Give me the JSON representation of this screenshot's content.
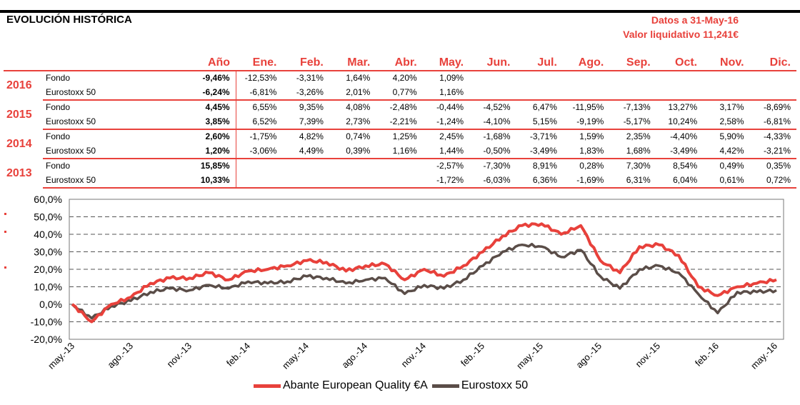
{
  "header": {
    "title": "EVOLUCIÓN HISTÓRICA",
    "date_line": "Datos a 31-May-16",
    "nav_line": "Valor liquidativo 11,241€"
  },
  "table": {
    "columns": [
      "Año",
      "Ene.",
      "Feb.",
      "Mar.",
      "Abr.",
      "May.",
      "Jun.",
      "Jul.",
      "Ago.",
      "Sep.",
      "Oct.",
      "Nov.",
      "Dic."
    ],
    "rows": [
      {
        "year": "2016",
        "fondo": {
          "label": "Fondo",
          "ano": "-9,46%",
          "months": [
            "-12,53%",
            "-3,31%",
            "1,64%",
            "4,20%",
            "1,09%",
            "",
            "",
            "",
            "",
            "",
            "",
            ""
          ]
        },
        "index": {
          "label": "Eurostoxx 50",
          "ano": "-6,24%",
          "months": [
            "-6,81%",
            "-3,26%",
            "2,01%",
            "0,77%",
            "1,16%",
            "",
            "",
            "",
            "",
            "",
            "",
            ""
          ]
        }
      },
      {
        "year": "2015",
        "fondo": {
          "label": "Fondo",
          "ano": "4,45%",
          "months": [
            "6,55%",
            "9,35%",
            "4,08%",
            "-2,48%",
            "-0,44%",
            "-4,52%",
            "6,47%",
            "-11,95%",
            "-7,13%",
            "13,27%",
            "3,17%",
            "-8,69%"
          ]
        },
        "index": {
          "label": "Eurostoxx 50",
          "ano": "3,85%",
          "months": [
            "6,52%",
            "7,39%",
            "2,73%",
            "-2,21%",
            "-1,24%",
            "-4,10%",
            "5,15%",
            "-9,19%",
            "-5,17%",
            "10,24%",
            "2,58%",
            "-6,81%"
          ]
        }
      },
      {
        "year": "2014",
        "fondo": {
          "label": "Fondo",
          "ano": "2,60%",
          "months": [
            "-1,75%",
            "4,82%",
            "0,74%",
            "1,25%",
            "2,45%",
            "-1,68%",
            "-3,71%",
            "1,59%",
            "2,35%",
            "-4,40%",
            "5,90%",
            "-4,33%"
          ]
        },
        "index": {
          "label": "Eurostoxx 50",
          "ano": "1,20%",
          "months": [
            "-3,06%",
            "4,49%",
            "0,39%",
            "1,16%",
            "1,44%",
            "-0,50%",
            "-3,49%",
            "1,83%",
            "1,68%",
            "-3,49%",
            "4,42%",
            "-3,21%"
          ]
        }
      },
      {
        "year": "2013",
        "fondo": {
          "label": "Fondo",
          "ano": "15,85%",
          "months": [
            "",
            "",
            "",
            "",
            "-2,57%",
            "-7,30%",
            "8,91%",
            "0,28%",
            "7,30%",
            "8,54%",
            "0,49%",
            "0,35%"
          ]
        },
        "index": {
          "label": "Eurostoxx 50",
          "ano": "10,33%",
          "months": [
            "",
            "",
            "",
            "",
            "-1,72%",
            "-6,03%",
            "6,36%",
            "-1,69%",
            "6,31%",
            "6,04%",
            "0,61%",
            "0,72%"
          ]
        }
      }
    ]
  },
  "colors": {
    "accent": "#e8413b",
    "fund_line": "#e8413b",
    "index_line": "#5a4d48"
  },
  "chart_data": {
    "type": "line",
    "y_ticks": [
      "60,0%",
      "50,0%",
      "40,0%",
      "30,0%",
      "20,0%",
      "10,0%",
      "0,0%",
      "-10,0%",
      "-20,0%"
    ],
    "ylim": [
      -20,
      60
    ],
    "x_ticks": [
      "may.-13",
      "ago.-13",
      "nov.-13",
      "feb.-14",
      "may.-14",
      "ago.-14",
      "nov.-14",
      "feb.-15",
      "may.-15",
      "ago.-15",
      "nov.-15",
      "feb.-16",
      "may.-16"
    ],
    "x_range": [
      "may.-13",
      "may.-16"
    ],
    "grid": "horizontal-dashed",
    "legend_position": "bottom-center",
    "x": [
      "may.-13",
      "jun.-13",
      "jul.-13",
      "ago.-13",
      "sep.-13",
      "oct.-13",
      "nov.-13",
      "dic.-13",
      "ene.-14",
      "feb.-14",
      "mar.-14",
      "abr.-14",
      "may.-14",
      "jun.-14",
      "jul.-14",
      "ago.-14",
      "sep.-14",
      "oct.-14",
      "nov.-14",
      "dic.-14",
      "ene.-15",
      "feb.-15",
      "mar.-15",
      "abr.-15",
      "may.-15",
      "jun.-15",
      "jul.-15",
      "ago.-15",
      "sep.-15",
      "oct.-15",
      "nov.-15",
      "dic.-15",
      "ene.-16",
      "feb.-16",
      "mar.-16",
      "abr.-16",
      "may.-16"
    ],
    "series": [
      {
        "name": "Abante European Quality €A",
        "values": [
          0,
          -10,
          0,
          4,
          12,
          15,
          15,
          18,
          14,
          19,
          20,
          22,
          25,
          24,
          19,
          22,
          23,
          14,
          20,
          16,
          22,
          30,
          39,
          45,
          46,
          40,
          45,
          25,
          18,
          33,
          34,
          28,
          10,
          5,
          10,
          12,
          14
        ]
      },
      {
        "name": "Eurostoxx 50",
        "values": [
          0,
          -8,
          -1,
          2,
          7,
          9,
          8,
          11,
          9,
          13,
          12,
          13,
          16,
          15,
          12,
          14,
          15,
          6,
          11,
          9,
          14,
          22,
          30,
          34,
          33,
          27,
          31,
          16,
          9,
          20,
          22,
          18,
          6,
          -5,
          7,
          7,
          8
        ]
      }
    ]
  }
}
